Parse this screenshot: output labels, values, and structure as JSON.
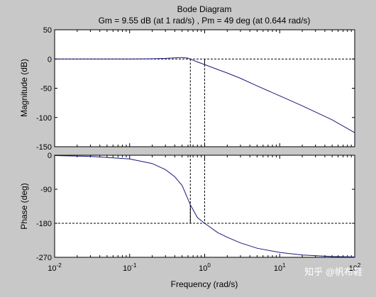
{
  "chart_data": {
    "type": "line",
    "title": "Bode Diagram",
    "subtitle": "Gm = 9.55 dB (at 1 rad/s) ,  Pm = 49 deg (at 0.644 rad/s)",
    "xlabel": "Frequency  (rad/s)",
    "x_scale": "log",
    "xlim": [
      0.01,
      100
    ],
    "x_tick_labels": [
      {
        "base": "10",
        "exp": "-2"
      },
      {
        "base": "10",
        "exp": "-1"
      },
      {
        "base": "10",
        "exp": "0"
      },
      {
        "base": "10",
        "exp": "1"
      },
      {
        "base": "10",
        "exp": "2"
      }
    ],
    "grid": false,
    "line_color": "#1a1a7a",
    "margins": {
      "gain_margin_db": 9.55,
      "gain_crossover_phase_freq": 1,
      "phase_margin_deg": 49,
      "phase_crossover_gain_freq": 0.644
    },
    "magnitude": {
      "ylabel": "Magnitude (dB)",
      "ylim": [
        -150,
        50
      ],
      "yticks": [
        "50",
        "0",
        "-50",
        "-100",
        "-150"
      ],
      "x": [
        0.01,
        0.03,
        0.1,
        0.2,
        0.3,
        0.4,
        0.5,
        0.6,
        0.644,
        0.7,
        0.8,
        1,
        1.5,
        2,
        3,
        5,
        10,
        20,
        50,
        100
      ],
      "y": [
        0,
        0,
        0.1,
        0.4,
        1.0,
        2.0,
        2.5,
        1.5,
        0,
        -2,
        -5,
        -9.55,
        -18,
        -24,
        -33,
        -46,
        -63,
        -80,
        -104,
        -126
      ]
    },
    "phase": {
      "ylabel": "Phase (deg)",
      "ylim": [
        -270,
        0
      ],
      "yticks": [
        "0",
        "-90",
        "-180",
        "-270"
      ],
      "x": [
        0.01,
        0.03,
        0.1,
        0.2,
        0.3,
        0.4,
        0.5,
        0.644,
        0.8,
        1,
        1.5,
        2,
        3,
        5,
        10,
        20,
        50,
        100
      ],
      "y": [
        -1,
        -3,
        -10,
        -22,
        -38,
        -57,
        -80,
        -131,
        -165,
        -180,
        -205,
        -217,
        -232,
        -246,
        -257,
        -264,
        -268,
        -269
      ]
    }
  },
  "watermark": "知乎 @帆布鞋"
}
